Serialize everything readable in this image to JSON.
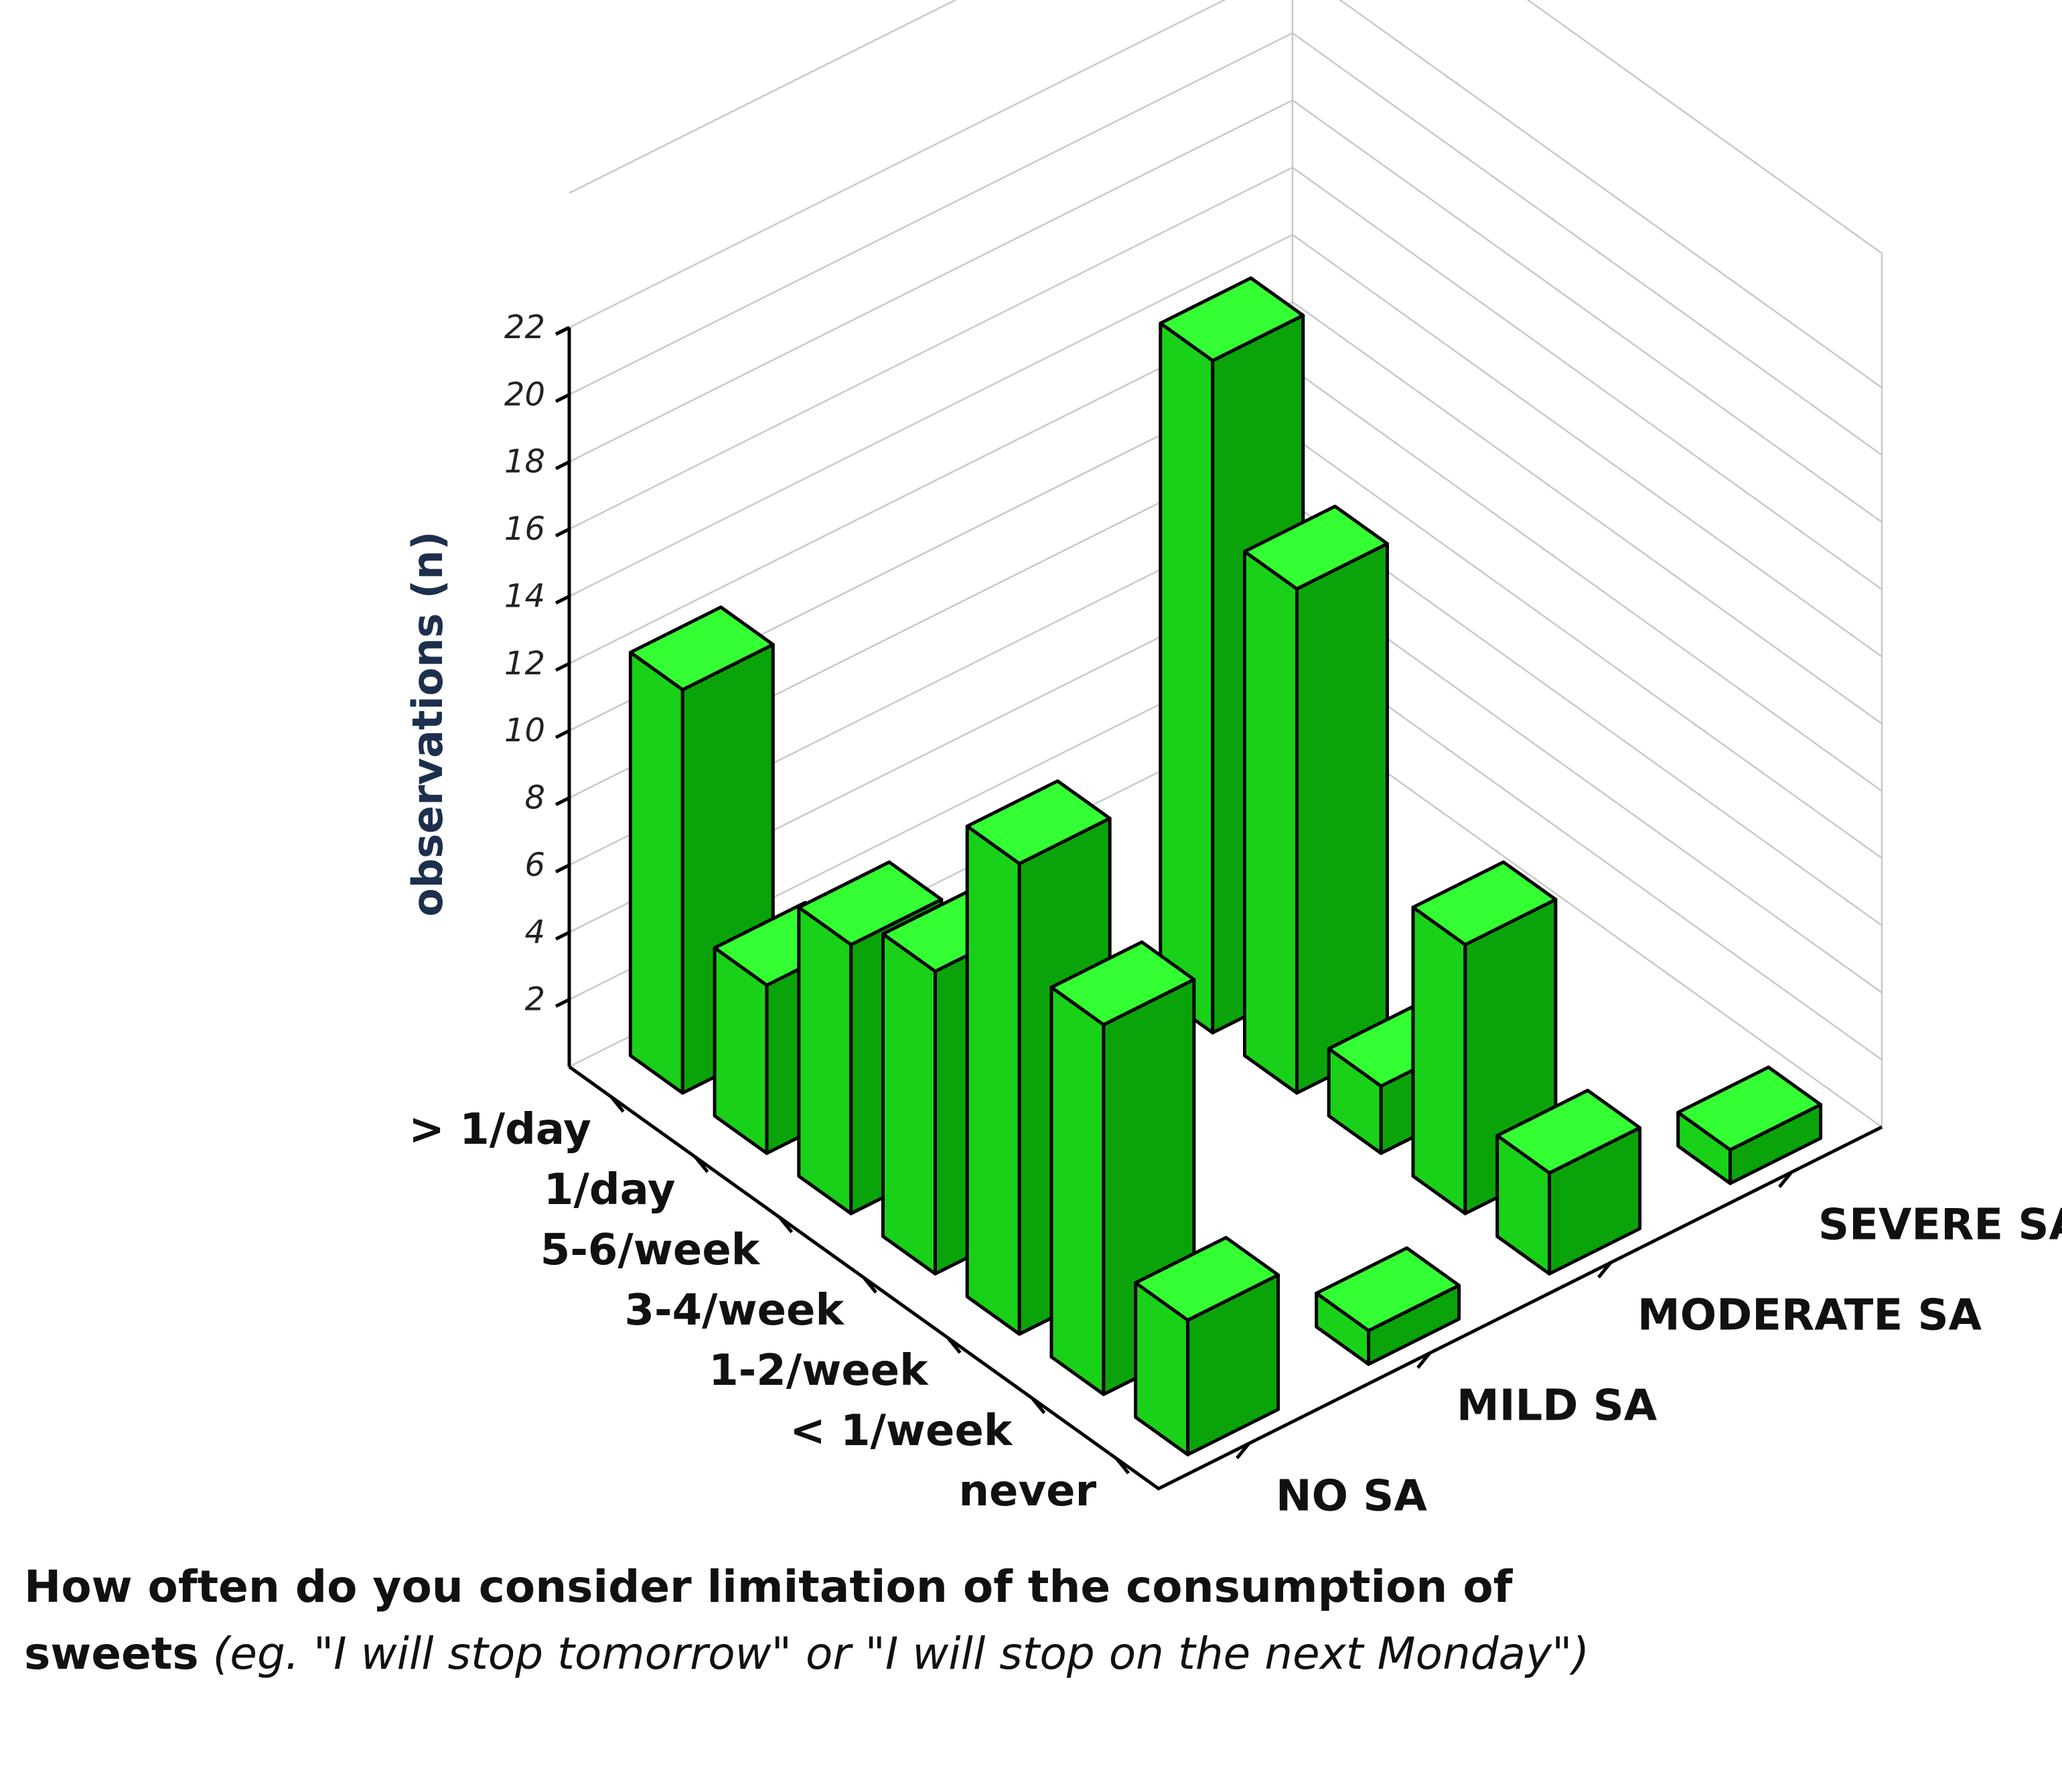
{
  "chart_data": {
    "type": "3d-bar",
    "zlabel": "observations (n)",
    "z_ticks": [
      2,
      4,
      6,
      8,
      10,
      12,
      14,
      16,
      18,
      20,
      22
    ],
    "zlim": [
      0,
      22
    ],
    "frequency_categories": [
      "> 1/day",
      "1/day",
      "5-6/week",
      "3-4/week",
      "1-2/week",
      "< 1/week",
      "never"
    ],
    "group_categories": [
      "NO SA",
      "MILD SA",
      "MODERATE SA",
      "SEVERE SA"
    ],
    "series": [
      {
        "name": "NO SA",
        "values": [
          12,
          5,
          8,
          9,
          14,
          11,
          4
        ]
      },
      {
        "name": "MILD SA",
        "values": [
          0,
          0,
          0,
          0,
          0,
          0,
          1
        ]
      },
      {
        "name": "MODERATE SA",
        "values": [
          0,
          0,
          20,
          15,
          2,
          8,
          3
        ]
      },
      {
        "name": "SEVERE SA",
        "values": [
          0,
          0,
          0,
          0,
          0,
          0,
          1
        ]
      }
    ]
  },
  "caption": {
    "bold": "How often do you consider limitation of the consumption of sweets",
    "italic": "(eg. \"I will stop tomorrow\" or \"I will stop on the next Monday\")"
  }
}
